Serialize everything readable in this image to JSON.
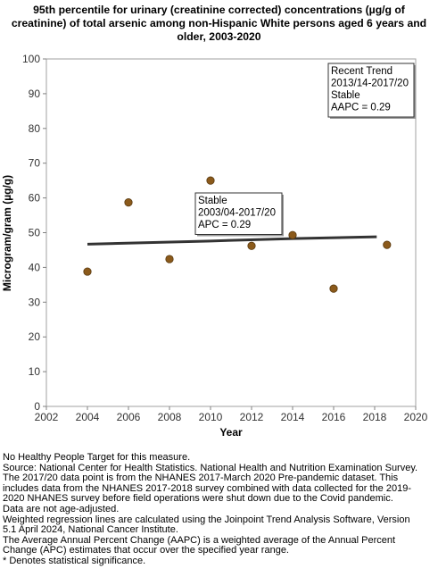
{
  "title_lines": [
    "95th percentile for urinary (creatinine corrected) concentrations (µg/g of",
    "creatinine) of total arsenic among non-Hispanic White persons aged 6 years and",
    "older, 2003-2020"
  ],
  "chart_data": {
    "type": "scatter",
    "xlabel": "Year",
    "ylabel": "Microgram/gram (µg/g)",
    "xlim": [
      2002,
      2020
    ],
    "ylim": [
      0,
      100
    ],
    "x_ticks": [
      "2002",
      "2004",
      "2006",
      "2008",
      "2010",
      "2012",
      "2014",
      "2016",
      "2018",
      "2020"
    ],
    "y_ticks": [
      "0",
      "10",
      "20",
      "30",
      "40",
      "50",
      "60",
      "70",
      "80",
      "90",
      "100"
    ],
    "grid": false,
    "points": [
      {
        "x": 2004.0,
        "y": 38.8
      },
      {
        "x": 2006.0,
        "y": 58.7
      },
      {
        "x": 2008.0,
        "y": 42.4
      },
      {
        "x": 2010.0,
        "y": 65.0
      },
      {
        "x": 2012.0,
        "y": 46.2
      },
      {
        "x": 2014.0,
        "y": 49.3
      },
      {
        "x": 2016.0,
        "y": 33.9
      },
      {
        "x": 2018.6,
        "y": 46.5
      }
    ],
    "trend_line": [
      {
        "x": 2004.0,
        "y": 46.7
      },
      {
        "x": 2010.0,
        "y": 47.6
      },
      {
        "x": 2014.0,
        "y": 48.3
      },
      {
        "x": 2018.1,
        "y": 48.8
      }
    ],
    "point_color": "#8B5A1B",
    "line_color": "#333333",
    "annotations": [
      {
        "id": "recent",
        "lines": [
          "Recent Trend",
          "2013/14-2017/20",
          "Stable",
          "AAPC =  0.29"
        ]
      },
      {
        "id": "segment",
        "lines": [
          "Stable",
          "2003/04-2017/20",
          "APC =  0.29"
        ]
      }
    ]
  },
  "footnotes": [
    "No Healthy People Target for this measure.",
    "Source: National Center for Health Statistics. National Health and Nutrition Examination Survey.",
    "The 2017/20 data point is from the NHANES 2017-March 2020 Pre-pandemic dataset. This",
    "includes data from the NHANES 2017-2018 survey combined with data collected for the 2019-",
    "2020 NHANES survey before field operations were shut down due to the Covid pandemic.",
    "Data are not age-adjusted.",
    "Weighted regression lines are calculated using the Joinpoint Trend Analysis Software, Version",
    "5.1 April 2024, National Cancer Institute.",
    "The Average Annual Percent Change (AAPC) is a weighted average of the Annual Percent",
    "Change (APC) estimates that occur over the specified year range.",
    "* Denotes statistical significance."
  ]
}
